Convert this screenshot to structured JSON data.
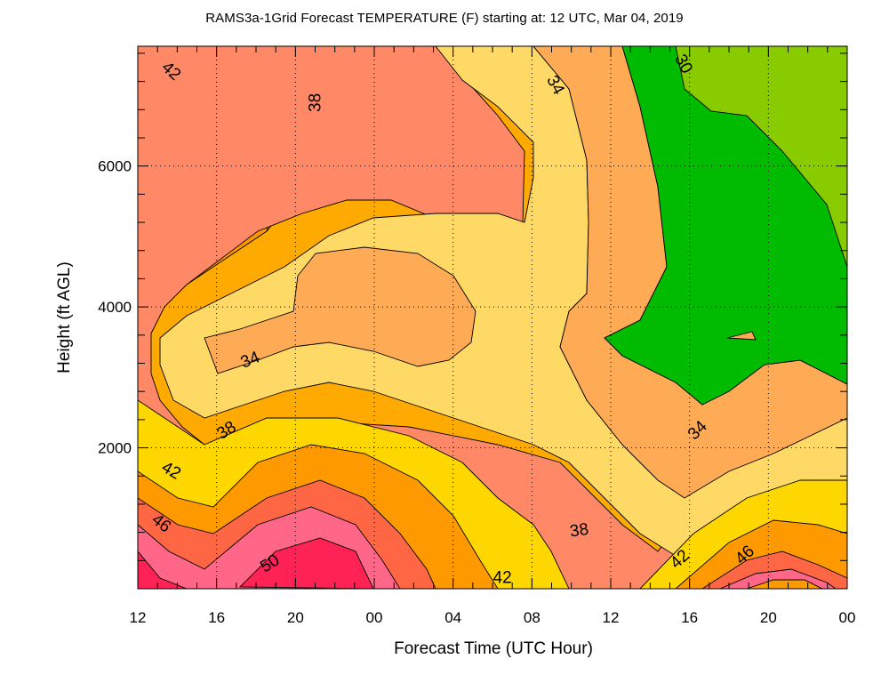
{
  "chart_data": {
    "type": "heatmap",
    "subtype": "filled-contour",
    "title": "RAMS3a-1Grid Forecast TEMPERATURE (F) starting at:  12 UTC, Mar 04, 2019",
    "xlabel": "Forecast Time (UTC Hour)",
    "ylabel": "Height (ft AGL)",
    "x_tick_labels": [
      "12",
      "16",
      "20",
      "00",
      "04",
      "08",
      "12",
      "16",
      "20",
      "00"
    ],
    "x_tick_hours": [
      0,
      4,
      8,
      12,
      16,
      20,
      24,
      28,
      32,
      36
    ],
    "xlim_hours": [
      0,
      36
    ],
    "y_ticks": [
      2000,
      4000,
      6000
    ],
    "y_tick_labels": [
      "2000",
      "4000",
      "6000"
    ],
    "ylim": [
      0,
      7700
    ],
    "grid": "dotted",
    "contour_interval": 2,
    "contour_labels": [
      {
        "text": "42",
        "x_hour": 1.7,
        "y_ft": 7350,
        "angle": 42
      },
      {
        "text": "38",
        "x_hour": 9.0,
        "y_ft": 6900,
        "angle": -90
      },
      {
        "text": "34",
        "x_hour": 21.2,
        "y_ft": 7150,
        "angle": 62
      },
      {
        "text": "30",
        "x_hour": 27.7,
        "y_ft": 7450,
        "angle": 62
      },
      {
        "text": "34",
        "x_hour": 5.7,
        "y_ft": 3250,
        "angle": -22
      },
      {
        "text": "38",
        "x_hour": 4.5,
        "y_ft": 2250,
        "angle": -32
      },
      {
        "text": "42",
        "x_hour": 1.7,
        "y_ft": 1680,
        "angle": 30
      },
      {
        "text": "46",
        "x_hour": 1.2,
        "y_ft": 930,
        "angle": 38
      },
      {
        "text": "50",
        "x_hour": 6.7,
        "y_ft": 360,
        "angle": -32
      },
      {
        "text": "42",
        "x_hour": 18.5,
        "y_ft": 160,
        "angle": 0
      },
      {
        "text": "38",
        "x_hour": 22.4,
        "y_ft": 830,
        "angle": -8
      },
      {
        "text": "34",
        "x_hour": 28.4,
        "y_ft": 2250,
        "angle": -45
      },
      {
        "text": "42",
        "x_hour": 27.5,
        "y_ft": 420,
        "angle": -42
      },
      {
        "text": "46",
        "x_hour": 30.8,
        "y_ft": 480,
        "angle": -42
      }
    ],
    "fill_colors": {
      "t28": "#88cc00",
      "t30": "#00bb00",
      "t32": "#ffd966",
      "t34": "#ffaa55",
      "t36": "#ff8866",
      "t38": "#ffaa00",
      "t40": "#ffd700",
      "t42": "#ff9900",
      "t44": "#ff6644",
      "t46": "#ff6688",
      "t48": "#ff2255",
      "t50": "#ee1177"
    }
  }
}
